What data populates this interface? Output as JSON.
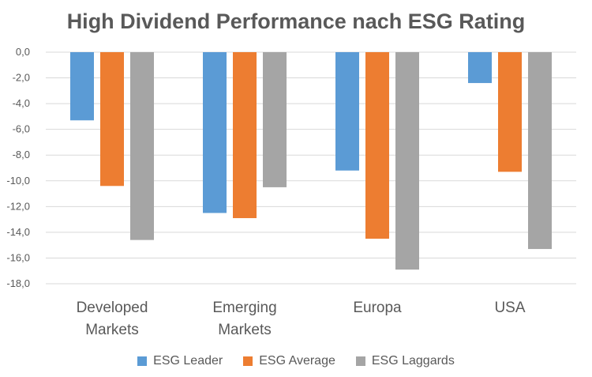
{
  "chart_data": {
    "type": "bar",
    "title": "High Dividend Performance nach ESG Rating",
    "categories": [
      [
        "Developed",
        "Markets"
      ],
      [
        "Emerging",
        "Markets"
      ],
      [
        "Europa"
      ],
      [
        "USA"
      ]
    ],
    "series": [
      {
        "name": "ESG Leader",
        "color": "#5B9BD5",
        "values": [
          -5.3,
          -12.5,
          -9.2,
          -2.4
        ]
      },
      {
        "name": "ESG Average",
        "color": "#ED7D31",
        "values": [
          -10.4,
          -12.9,
          -14.5,
          -9.3
        ]
      },
      {
        "name": "ESG Laggards",
        "color": "#A5A5A5",
        "values": [
          -14.6,
          -10.5,
          -16.9,
          -15.3
        ]
      }
    ],
    "ylim": [
      -18,
      0
    ],
    "yticks": [
      "0,0",
      "-2,0",
      "-4,0",
      "-6,0",
      "-8,0",
      "-10,0",
      "-12,0",
      "-14,0",
      "-16,0",
      "-18,0"
    ],
    "grid": true,
    "legend_position": "bottom"
  }
}
